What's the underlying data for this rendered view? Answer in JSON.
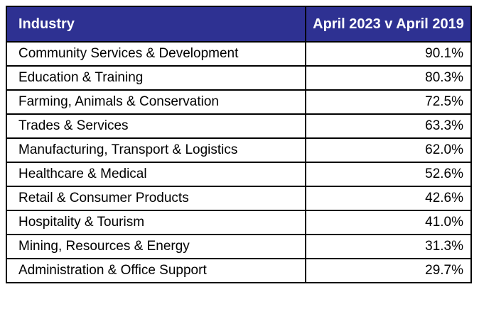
{
  "chart_data": {
    "type": "table",
    "columns": [
      "Industry",
      "April 2023 v April 2019"
    ],
    "rows": [
      {
        "industry": "Community Services & Development",
        "value": "90.1%"
      },
      {
        "industry": "Education & Training",
        "value": "80.3%"
      },
      {
        "industry": "Farming, Animals & Conservation",
        "value": "72.5%"
      },
      {
        "industry": "Trades & Services",
        "value": "63.3%"
      },
      {
        "industry": "Manufacturing, Transport & Logistics",
        "value": "62.0%"
      },
      {
        "industry": "Healthcare & Medical",
        "value": "52.6%"
      },
      {
        "industry": "Retail & Consumer Products",
        "value": "42.6%"
      },
      {
        "industry": "Hospitality & Tourism",
        "value": "41.0%"
      },
      {
        "industry": "Mining, Resources & Energy",
        "value": "31.3%"
      },
      {
        "industry": "Administration & Office Support",
        "value": "29.7%"
      }
    ],
    "values_numeric": [
      90.1,
      80.3,
      72.5,
      63.3,
      62.0,
      52.6,
      42.6,
      41.0,
      31.3,
      29.7
    ],
    "value_unit": "percent"
  },
  "colors": {
    "header_background": "#2E3192",
    "header_text": "#FFFFFF",
    "border": "#000000",
    "row_background": "#FFFFFF",
    "row_text": "#000000"
  }
}
